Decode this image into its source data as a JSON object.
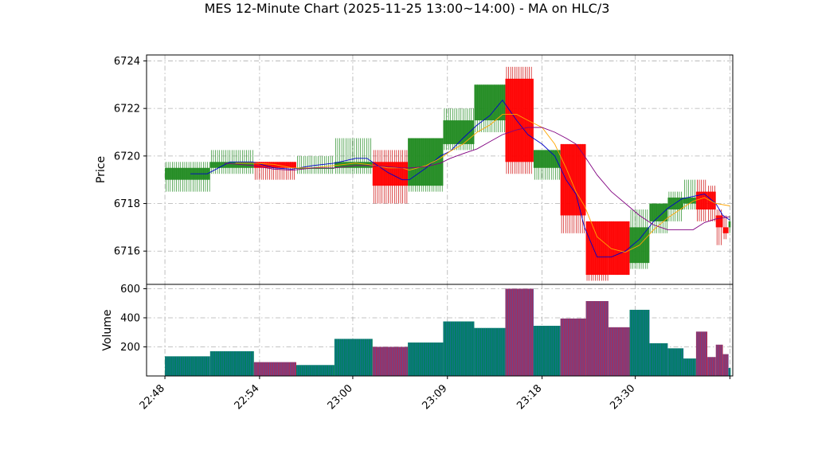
{
  "chart_data": {
    "type": "candlestick",
    "title": "MES 12-Minute Chart (2025-11-25 13:00~14:00) - MA on HLC/3",
    "price_panel": {
      "ylabel": "Price",
      "ylim": [
        6714.6,
        6724.25
      ],
      "yticks": [
        6716,
        6718,
        6720,
        6722,
        6724
      ]
    },
    "volume_panel": {
      "ylabel": "Volume",
      "ylim": [
        0,
        630
      ],
      "yticks": [
        200,
        400,
        600
      ]
    },
    "x_range": [
      -1.3,
      40.2
    ],
    "x_ticks": [
      {
        "pos": 0,
        "label": "22:48"
      },
      {
        "pos": 6.7,
        "label": "22:54"
      },
      {
        "pos": 13.3,
        "label": "23:00"
      },
      {
        "pos": 20,
        "label": "23:09"
      },
      {
        "pos": 26.7,
        "label": "23:18"
      },
      {
        "pos": 33.3,
        "label": "23:30"
      },
      {
        "pos": 40,
        "label": ""
      }
    ],
    "candles": [
      {
        "x0": 0,
        "x1": 3.2,
        "open": 6719.0,
        "close": 6719.5,
        "high": 6719.75,
        "low": 6718.5,
        "volume": 135
      },
      {
        "x0": 3.2,
        "x1": 6.3,
        "open": 6719.5,
        "close": 6719.75,
        "high": 6720.25,
        "low": 6719.25,
        "volume": 170
      },
      {
        "x0": 6.3,
        "x1": 9.3,
        "open": 6719.75,
        "close": 6719.5,
        "high": 6719.75,
        "low": 6719.0,
        "volume": 95
      },
      {
        "x0": 9.3,
        "x1": 12.0,
        "open": 6719.5,
        "close": 6719.5,
        "high": 6720.0,
        "low": 6719.25,
        "volume": 75
      },
      {
        "x0": 12.0,
        "x1": 14.7,
        "open": 6719.5,
        "close": 6719.75,
        "high": 6720.75,
        "low": 6719.25,
        "volume": 255
      },
      {
        "x0": 14.7,
        "x1": 17.2,
        "open": 6719.75,
        "close": 6718.75,
        "high": 6720.25,
        "low": 6718.0,
        "volume": 200
      },
      {
        "x0": 17.2,
        "x1": 19.7,
        "open": 6718.75,
        "close": 6720.75,
        "high": 6720.75,
        "low": 6718.5,
        "volume": 230
      },
      {
        "x0": 19.7,
        "x1": 21.9,
        "open": 6720.5,
        "close": 6721.5,
        "high": 6722.0,
        "low": 6720.25,
        "volume": 375
      },
      {
        "x0": 21.9,
        "x1": 24.1,
        "open": 6721.5,
        "close": 6723.0,
        "high": 6723.0,
        "low": 6721.0,
        "volume": 330
      },
      {
        "x0": 24.1,
        "x1": 26.1,
        "open": 6723.25,
        "close": 6719.75,
        "high": 6723.75,
        "low": 6719.25,
        "volume": 600
      },
      {
        "x0": 26.1,
        "x1": 28.0,
        "open": 6719.5,
        "close": 6720.25,
        "high": 6720.25,
        "low": 6719.0,
        "volume": 345
      },
      {
        "x0": 28.0,
        "x1": 29.8,
        "open": 6720.5,
        "close": 6717.5,
        "high": 6720.5,
        "low": 6716.75,
        "volume": 395
      },
      {
        "x0": 29.8,
        "x1": 31.4,
        "open": 6717.25,
        "close": 6715.0,
        "high": 6717.25,
        "low": 6714.75,
        "volume": 515
      },
      {
        "x0": 31.4,
        "x1": 32.9,
        "open": 6717.25,
        "close": 6715.0,
        "high": 6717.25,
        "low": 6715.0,
        "volume": 335
      },
      {
        "x0": 32.9,
        "x1": 34.3,
        "open": 6715.5,
        "close": 6717.0,
        "high": 6717.75,
        "low": 6715.25,
        "volume": 455
      },
      {
        "x0": 34.3,
        "x1": 35.6,
        "open": 6717.25,
        "close": 6718.0,
        "high": 6718.0,
        "low": 6716.75,
        "volume": 225
      },
      {
        "x0": 35.6,
        "x1": 36.7,
        "open": 6717.75,
        "close": 6718.25,
        "high": 6718.5,
        "low": 6717.25,
        "volume": 190
      },
      {
        "x0": 36.7,
        "x1": 37.6,
        "open": 6718.0,
        "close": 6718.25,
        "high": 6719.0,
        "low": 6717.75,
        "volume": 120
      },
      {
        "x0": 37.6,
        "x1": 38.4,
        "open": 6718.5,
        "close": 6717.75,
        "high": 6719.0,
        "low": 6717.25,
        "volume": 305
      },
      {
        "x0": 38.4,
        "x1": 39.0,
        "open": 6718.5,
        "close": 6717.75,
        "high": 6718.75,
        "low": 6717.25,
        "volume": 130
      },
      {
        "x0": 39.0,
        "x1": 39.5,
        "open": 6717.5,
        "close": 6717.0,
        "high": 6717.75,
        "low": 6716.25,
        "volume": 215
      },
      {
        "x0": 39.5,
        "x1": 39.9,
        "open": 6717.0,
        "close": 6716.75,
        "high": 6717.5,
        "low": 6716.5,
        "volume": 150
      },
      {
        "x0": 39.9,
        "x1": 40.05,
        "open": 6717.0,
        "close": 6717.25,
        "high": 6717.5,
        "low": 6716.75,
        "volume": 55
      }
    ],
    "ma_series": [
      {
        "color": "#0000cc",
        "points": [
          [
            1.8,
            6719.25
          ],
          [
            3.0,
            6719.25
          ],
          [
            4.6,
            6719.75
          ],
          [
            6.2,
            6719.75
          ],
          [
            7.7,
            6719.5
          ],
          [
            9.0,
            6719.45
          ],
          [
            10.5,
            6719.6
          ],
          [
            12.0,
            6719.7
          ],
          [
            13.5,
            6719.9
          ],
          [
            14.3,
            6719.9
          ],
          [
            15.8,
            6719.3
          ],
          [
            16.8,
            6719.0
          ],
          [
            17.3,
            6719.0
          ],
          [
            18.5,
            6719.5
          ],
          [
            19.5,
            6720.0
          ],
          [
            20.2,
            6720.2
          ],
          [
            21.1,
            6720.75
          ],
          [
            22.1,
            6721.3
          ],
          [
            23.0,
            6721.7
          ],
          [
            23.9,
            6722.35
          ],
          [
            24.9,
            6721.5
          ],
          [
            25.7,
            6720.9
          ],
          [
            26.7,
            6720.5
          ],
          [
            27.6,
            6720.0
          ],
          [
            28.4,
            6719.0
          ],
          [
            29.1,
            6718.4
          ],
          [
            29.7,
            6717.0
          ],
          [
            30.6,
            6715.75
          ],
          [
            31.6,
            6715.75
          ],
          [
            32.6,
            6716.0
          ],
          [
            33.6,
            6716.5
          ],
          [
            34.6,
            6717.25
          ],
          [
            35.6,
            6717.8
          ],
          [
            36.6,
            6718.2
          ],
          [
            37.4,
            6718.3
          ],
          [
            38.2,
            6718.4
          ],
          [
            39.0,
            6718.0
          ],
          [
            39.5,
            6717.5
          ],
          [
            40.0,
            6717.3
          ]
        ]
      },
      {
        "color": "#ffa500",
        "points": [
          [
            5.0,
            6719.7
          ],
          [
            6.2,
            6719.7
          ],
          [
            7.7,
            6719.65
          ],
          [
            9.0,
            6719.5
          ],
          [
            10.5,
            6719.5
          ],
          [
            12.0,
            6719.6
          ],
          [
            13.5,
            6719.7
          ],
          [
            14.3,
            6719.65
          ],
          [
            15.8,
            6719.5
          ],
          [
            16.8,
            6719.5
          ],
          [
            17.3,
            6719.4
          ],
          [
            18.5,
            6719.6
          ],
          [
            19.5,
            6719.9
          ],
          [
            20.2,
            6720.2
          ],
          [
            21.1,
            6720.5
          ],
          [
            22.1,
            6721.0
          ],
          [
            23.0,
            6721.3
          ],
          [
            23.9,
            6721.75
          ],
          [
            24.9,
            6721.75
          ],
          [
            25.7,
            6721.5
          ],
          [
            26.7,
            6721.2
          ],
          [
            27.6,
            6720.5
          ],
          [
            28.4,
            6719.5
          ],
          [
            29.1,
            6718.5
          ],
          [
            29.7,
            6717.9
          ],
          [
            30.6,
            6716.6
          ],
          [
            31.6,
            6716.1
          ],
          [
            32.6,
            6715.95
          ],
          [
            33.6,
            6716.25
          ],
          [
            34.6,
            6716.9
          ],
          [
            35.6,
            6717.4
          ],
          [
            36.6,
            6717.8
          ],
          [
            37.4,
            6718.1
          ],
          [
            38.2,
            6718.25
          ],
          [
            39.0,
            6718.0
          ],
          [
            40.0,
            6717.9
          ]
        ]
      },
      {
        "color": "#800080",
        "points": [
          [
            4.2,
            6719.7
          ],
          [
            6.2,
            6719.6
          ],
          [
            7.7,
            6719.45
          ],
          [
            9.0,
            6719.4
          ],
          [
            10.5,
            6719.5
          ],
          [
            12.0,
            6719.5
          ],
          [
            13.5,
            6719.6
          ],
          [
            14.3,
            6719.6
          ],
          [
            15.8,
            6719.55
          ],
          [
            16.8,
            6719.5
          ],
          [
            17.3,
            6719.5
          ],
          [
            18.5,
            6719.55
          ],
          [
            19.5,
            6719.7
          ],
          [
            20.2,
            6719.9
          ],
          [
            21.1,
            6720.1
          ],
          [
            22.1,
            6720.3
          ],
          [
            23.0,
            6720.6
          ],
          [
            23.9,
            6720.9
          ],
          [
            24.9,
            6721.1
          ],
          [
            25.7,
            6721.2
          ],
          [
            26.7,
            6721.2
          ],
          [
            27.6,
            6721.0
          ],
          [
            28.4,
            6720.75
          ],
          [
            29.1,
            6720.5
          ],
          [
            29.7,
            6720.0
          ],
          [
            30.6,
            6719.2
          ],
          [
            31.6,
            6718.5
          ],
          [
            32.6,
            6718.0
          ],
          [
            33.6,
            6717.5
          ],
          [
            34.6,
            6717.1
          ],
          [
            35.6,
            6716.9
          ],
          [
            36.6,
            6716.9
          ],
          [
            37.4,
            6716.9
          ],
          [
            38.2,
            6717.2
          ],
          [
            39.0,
            6717.35
          ],
          [
            40.0,
            6717.45
          ]
        ]
      }
    ],
    "colors": {
      "up_body": "#228b22",
      "down_body": "#ff0000",
      "up_wick": "#228b22",
      "down_wick": "#cc0000",
      "volume_up": "#008060",
      "volume_down": "#a03060",
      "volume_edge": "#3060c0"
    },
    "grid": true
  }
}
